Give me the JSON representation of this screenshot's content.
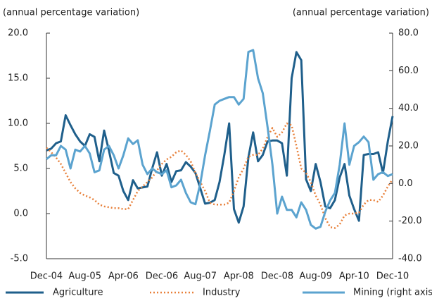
{
  "chart_data": {
    "type": "line",
    "ylabel": "(annual percentage variation)",
    "y2label": "(annual percentage variation)",
    "categories": [
      "Dec-04",
      null,
      null,
      null,
      null,
      null,
      null,
      null,
      "Aug-05",
      null,
      null,
      null,
      null,
      null,
      null,
      null,
      "Apr-06",
      null,
      null,
      null,
      null,
      null,
      null,
      null,
      "Dec-06",
      null,
      null,
      null,
      null,
      null,
      null,
      null,
      "Aug-07",
      null,
      null,
      null,
      null,
      null,
      null,
      null,
      "Apr-08",
      null,
      null,
      null,
      null,
      null,
      null,
      null,
      "Dec-08",
      null,
      null,
      null,
      null,
      null,
      null,
      null,
      "Aug-09",
      null,
      null,
      null,
      null,
      null,
      null,
      null,
      "Apr-10",
      null,
      null,
      null,
      null,
      null,
      null,
      null,
      "Dec-10"
    ],
    "series": [
      {
        "name": "Agriculture",
        "color": "#1f5f8b",
        "dash": false,
        "values": [
          7.0,
          7.2,
          7.8,
          8.0,
          10.9,
          9.8,
          8.8,
          8.0,
          7.5,
          8.8,
          8.5,
          5.8,
          9.2,
          7.0,
          4.5,
          4.2,
          2.5,
          1.5,
          3.7,
          2.8,
          2.9,
          3.0,
          5.0,
          6.8,
          4.2,
          5.5,
          3.5,
          4.7,
          4.8,
          5.7,
          5.2,
          4.5,
          2.8,
          1.1,
          1.2,
          1.5,
          3.5,
          6.5,
          10.0,
          0.5,
          -1.0,
          0.8,
          6.2,
          9.0,
          5.8,
          6.5,
          8.0,
          8.1,
          8.1,
          7.8,
          4.2,
          15.0,
          17.9,
          17.0,
          3.8,
          2.5,
          5.5,
          3.5,
          0.8,
          0.6,
          1.5,
          4.0,
          5.5,
          2.0,
          0.5,
          -0.8,
          6.5,
          6.6,
          6.6,
          6.8,
          4.5,
          8.0,
          10.8
        ]
      },
      {
        "name": "Industry",
        "color": "#e8803a",
        "dash": true,
        "values": [
          7.3,
          6.8,
          6.2,
          5.5,
          4.5,
          3.5,
          2.8,
          2.3,
          2.0,
          1.8,
          1.5,
          1.0,
          0.8,
          0.7,
          0.6,
          0.6,
          0.5,
          0.5,
          1.5,
          2.5,
          3.0,
          3.5,
          4.0,
          4.8,
          5.5,
          6.0,
          6.3,
          6.8,
          7.0,
          6.5,
          5.8,
          4.5,
          3.5,
          2.5,
          1.2,
          1.0,
          1.0,
          1.0,
          1.2,
          2.5,
          4.0,
          5.0,
          6.3,
          6.5,
          6.5,
          7.2,
          8.5,
          9.5,
          8.5,
          9.0,
          10.0,
          9.8,
          7.5,
          5.0,
          4.5,
          3.5,
          2.0,
          1.0,
          -0.5,
          -1.5,
          -1.6,
          -1.2,
          -0.2,
          0.0,
          0.0,
          0.1,
          1.0,
          1.5,
          1.5,
          1.3,
          2.0,
          3.0,
          3.8
        ]
      },
      {
        "name": "Mining (right axis)",
        "color": "#5ba3cf",
        "dash": false,
        "axis": "y2",
        "values": [
          13,
          15,
          15,
          20,
          18,
          8,
          18,
          17,
          20,
          16,
          6,
          7,
          18,
          20,
          15,
          8,
          15,
          24,
          21,
          23,
          10,
          5,
          8,
          6,
          5,
          7,
          -2,
          -1,
          2,
          -5,
          -10,
          -11,
          0,
          15,
          28,
          42,
          44,
          45,
          46,
          46,
          42,
          45,
          70,
          71,
          56,
          48,
          30,
          10,
          -16,
          -7,
          -14,
          -14,
          -18,
          -10,
          -14,
          -22,
          -24,
          -23,
          -15,
          -9,
          -5,
          10,
          32,
          10,
          20,
          22,
          25,
          22,
          2,
          5,
          6,
          4,
          5
        ]
      }
    ],
    "ylim": [
      -5,
      20
    ],
    "yticks": [
      {
        "value": -5,
        "label": "-5.0"
      },
      {
        "value": 0,
        "label": "0.0"
      },
      {
        "value": 5,
        "label": "5.0"
      },
      {
        "value": 10,
        "label": "10.0"
      },
      {
        "value": 15,
        "label": "15.0"
      },
      {
        "value": 20,
        "label": "20.0"
      }
    ],
    "y2lim": [
      -40,
      80
    ],
    "y2ticks": [
      {
        "value": -40,
        "label": "-40.0"
      },
      {
        "value": -20,
        "label": "-20.0"
      },
      {
        "value": 0,
        "label": "0.0"
      },
      {
        "value": 20,
        "label": "20.0"
      },
      {
        "value": 40,
        "label": "40.0"
      },
      {
        "value": 60,
        "label": "60.0"
      },
      {
        "value": 80,
        "label": "80.0"
      }
    ]
  }
}
